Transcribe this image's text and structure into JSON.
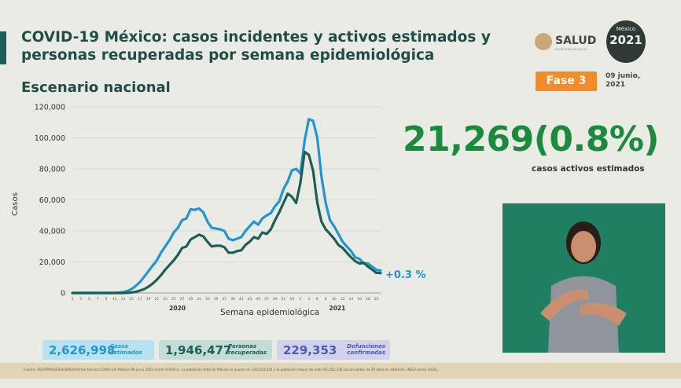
{
  "header": {
    "title": "COVID-19 México: casos incidentes y activos estimados y personas recuperadas por semana epidemiológica",
    "subtitle": "Escenario nacional",
    "salud_label": "SALUD",
    "salud_tagline": "SECRETARÍA DE SALUD",
    "year_logo_text": "2021",
    "year_logo_small": "México",
    "phase": "Fase 3",
    "date": "09 junio, 2021"
  },
  "headline": {
    "value": "21,269(0.8%)",
    "caption": "casos activos estimados"
  },
  "colors": {
    "cases": "#2196d3",
    "recovered": "#1d5e57",
    "deaths": "#4c5ab2",
    "headline": "#1a8a3c",
    "phase": "#f28c26"
  },
  "chart_data": {
    "type": "line",
    "ylabel": "Casos",
    "xlabel": "Semana epidemiológica",
    "ylim": [
      0,
      120000
    ],
    "yticks": [
      "0",
      "20,000",
      "40,000",
      "60,000",
      "80,000",
      "100,000",
      "120,000"
    ],
    "year_labels": [
      "2020",
      "2021"
    ],
    "x": [
      1,
      2,
      3,
      4,
      5,
      6,
      7,
      8,
      9,
      10,
      11,
      12,
      13,
      14,
      15,
      16,
      17,
      18,
      19,
      20,
      21,
      22,
      23,
      24,
      25,
      26,
      27,
      28,
      29,
      30,
      31,
      32,
      33,
      34,
      35,
      36,
      37,
      38,
      39,
      40,
      41,
      42,
      43,
      44,
      45,
      46,
      47,
      48,
      49,
      50,
      51,
      52,
      53,
      54,
      55,
      56,
      57,
      58,
      59,
      60,
      61,
      62,
      63,
      64,
      65,
      66,
      67,
      68,
      69,
      70,
      71,
      72,
      73,
      74
    ],
    "x_tick_labels": [
      "1",
      "3",
      "5",
      "7",
      "9",
      "11",
      "13",
      "15",
      "17",
      "19",
      "21",
      "23",
      "25",
      "27",
      "29",
      "31",
      "33",
      "35",
      "37",
      "39",
      "41",
      "43",
      "45",
      "47",
      "49",
      "51",
      "53",
      "2",
      "4",
      "6",
      "8",
      "10",
      "12",
      "14",
      "16",
      "18",
      "20"
    ],
    "series": [
      {
        "values": [
          0,
          0,
          0,
          0,
          0,
          0,
          0,
          0,
          0,
          0,
          0,
          200,
          500,
          1200,
          2500,
          4500,
          7000,
          10500,
          14000,
          17500,
          21000,
          26000,
          30000,
          34000,
          39000,
          42000,
          47000,
          48000,
          54000,
          53500,
          54500,
          52000,
          46000,
          42000,
          41500,
          41000,
          40000,
          35000,
          34000,
          35000,
          36000,
          40000,
          43000,
          46000,
          44000,
          48000,
          50000,
          51500,
          56000,
          59000,
          67000,
          72000,
          79000,
          80000,
          77000,
          98000,
          112000,
          111000,
          100000,
          75000,
          58000,
          47000,
          43000,
          38000,
          33000,
          30000,
          27000,
          23000,
          22000,
          19000,
          19000,
          17000,
          15000,
          14500
        ]
      },
      {
        "values": [
          0,
          0,
          0,
          0,
          0,
          0,
          0,
          0,
          0,
          0,
          0,
          0,
          0,
          100,
          300,
          700,
          1500,
          2500,
          4000,
          6000,
          8500,
          11500,
          15000,
          18000,
          21000,
          24500,
          29000,
          30000,
          34500,
          36000,
          37500,
          36500,
          33000,
          30000,
          30500,
          30500,
          29500,
          26000,
          26000,
          27000,
          27500,
          31000,
          33000,
          36000,
          35000,
          39000,
          38000,
          41000,
          47000,
          52000,
          58000,
          64000,
          62000,
          58000,
          71000,
          91000,
          89000,
          79000,
          58000,
          46000,
          41000,
          38000,
          35000,
          31000,
          29000,
          26000,
          23000,
          20500,
          19000,
          19500,
          17000,
          15000,
          13000,
          12800
        ]
      }
    ],
    "end_label": "+0.3 %"
  },
  "stats": [
    {
      "value": "2,626,998",
      "label": "Casos estimados"
    },
    {
      "value": "1,946,477",
      "label": "Personas recuperadas"
    },
    {
      "value": "229,353",
      "label": "Defunciones confirmadas"
    }
  ],
  "footer": "Fuente: SSA/SPPS/DGE/InDRE/Informe técnico.COVID-19 /México-09 junio 2021 (corte 9:00hrs). La población total de México se asume en 126,014,024 y la población mayor de edad 92,452,330 (acumulados de 20 años en adelante, INEGI censo 2020)."
}
